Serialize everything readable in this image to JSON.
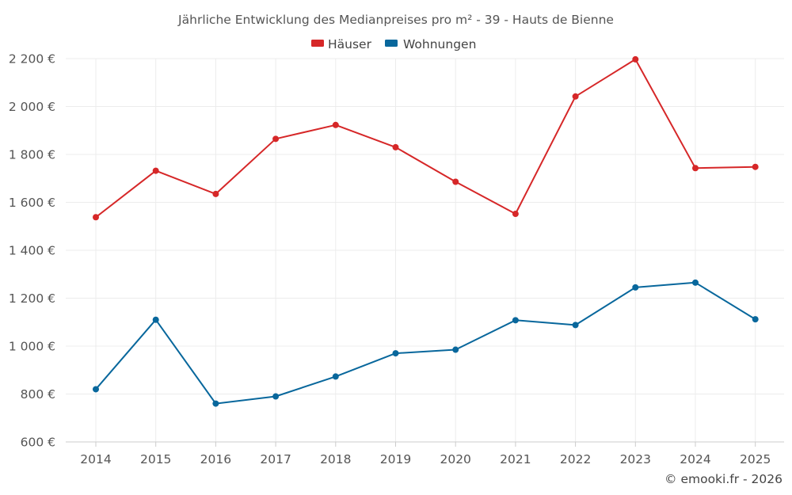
{
  "chart_data": {
    "type": "line",
    "title": "Jährliche Entwicklung des Medianpreises pro m² - 39 - Hauts de Bienne",
    "categories": [
      "2014",
      "2015",
      "2016",
      "2017",
      "2018",
      "2019",
      "2020",
      "2021",
      "2022",
      "2023",
      "2024",
      "2025"
    ],
    "series": [
      {
        "name": "Häuser",
        "color": "#d62728",
        "values": [
          1538,
          1732,
          1635,
          1865,
          1923,
          1830,
          1686,
          1552,
          2042,
          2197,
          1743,
          1748
        ]
      },
      {
        "name": "Wohnungen",
        "color": "#08679c",
        "values": [
          820,
          1110,
          760,
          790,
          873,
          970,
          985,
          1108,
          1088,
          1245,
          1265,
          1112
        ]
      }
    ],
    "yticks": [
      "600 €",
      "800 €",
      "1 000 €",
      "1 200 €",
      "1 400 €",
      "1 600 €",
      "1 800 €",
      "2 000 €",
      "2 200 €"
    ],
    "ylim": [
      600,
      2200
    ],
    "xlabel": "",
    "ylabel": "",
    "grid": true,
    "legend_position": "top-center"
  },
  "credit": "© emooki.fr - 2026"
}
